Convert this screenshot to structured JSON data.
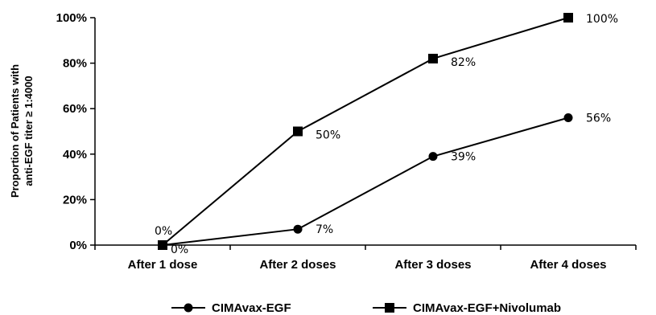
{
  "chart_data": {
    "type": "line",
    "title": "",
    "xlabel": "",
    "ylabel_lines": [
      "Proportion of  Patients with",
      "anti-EGF titer ≥ 1:4000"
    ],
    "categories": [
      "After 1 dose",
      "After 2 doses",
      "After 3 doses",
      "After 4 doses"
    ],
    "ylim": [
      0,
      100
    ],
    "y_ticks": [
      0,
      20,
      40,
      60,
      80,
      100
    ],
    "y_tick_labels": [
      "0%",
      "20%",
      "40%",
      "60%",
      "80%",
      "100%"
    ],
    "grid": false,
    "legend_position": "bottom",
    "series": [
      {
        "name": "CIMAvax-EGF",
        "marker": "circle",
        "values": [
          0,
          7,
          39,
          56
        ],
        "labels": [
          "0%",
          "7%",
          "39%",
          "56%"
        ]
      },
      {
        "name": "CIMAvax-EGF+Nivolumab",
        "marker": "square",
        "values": [
          0,
          50,
          82,
          100
        ],
        "labels": [
          "0%",
          "50%",
          "82%",
          "100%"
        ]
      }
    ]
  }
}
